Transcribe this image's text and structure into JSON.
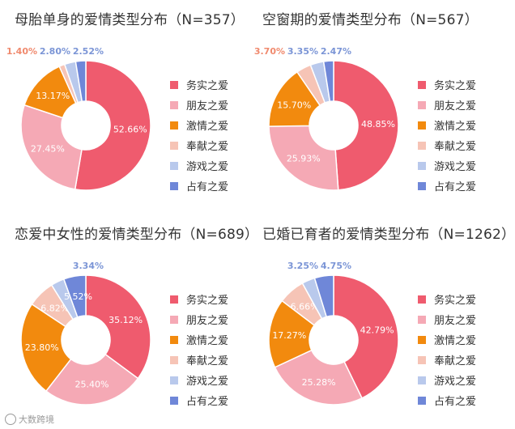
{
  "colors": {
    "务实之爱": "#EF5B6E",
    "朋友之爱": "#F5A9B5",
    "激情之爱": "#F28A0E",
    "奉献之爱": "#F6C4B6",
    "游戏之爱": "#B9C9EC",
    "占有之爱": "#6F87D8",
    "label_inside": "#ffffff",
    "label_outside": "#7B95D6",
    "label_outside_warm": "#F08A6E"
  },
  "watermark": "大数跨境",
  "chart_data": [
    {
      "type": "pie",
      "title": "母胎单身的爱情类型分布（N=357）",
      "categories": [
        "务实之爱",
        "朋友之爱",
        "激情之爱",
        "奉献之爱",
        "游戏之爱",
        "占有之爱"
      ],
      "values": [
        52.66,
        27.45,
        13.17,
        1.4,
        2.8,
        2.52
      ],
      "labels": [
        "52.66%",
        "27.45%",
        "13.17%",
        "1.40%",
        "2.80%",
        "2.52%"
      ],
      "legend": "right"
    },
    {
      "type": "pie",
      "title": "空窗期的爱情类型分布（N=567）",
      "categories": [
        "务实之爱",
        "朋友之爱",
        "激情之爱",
        "奉献之爱",
        "游戏之爱",
        "占有之爱"
      ],
      "values": [
        48.85,
        25.93,
        15.7,
        3.7,
        3.35,
        2.47
      ],
      "labels": [
        "48.85%",
        "25.93%",
        "15.70%",
        "3.70%",
        "3.35%",
        "2.47%"
      ],
      "legend": "right"
    },
    {
      "type": "pie",
      "title": "恋爱中女性的爱情类型分布（N=689）",
      "categories": [
        "务实之爱",
        "朋友之爱",
        "激情之爱",
        "奉献之爱",
        "游戏之爱",
        "占有之爱"
      ],
      "values": [
        35.12,
        25.4,
        23.8,
        6.82,
        3.34,
        5.52
      ],
      "labels": [
        "35.12%",
        "25.40%",
        "23.80%",
        "6.82%",
        "3.34%",
        "5.52%"
      ],
      "legend": "right"
    },
    {
      "type": "pie",
      "title": "已婚已育者的爱情类型分布（N=1262）",
      "categories": [
        "务实之爱",
        "朋友之爱",
        "激情之爱",
        "奉献之爱",
        "游戏之爱",
        "占有之爱"
      ],
      "values": [
        42.79,
        25.28,
        17.27,
        6.66,
        3.25,
        4.75
      ],
      "labels": [
        "42.79%",
        "25.28%",
        "17.27%",
        "6.66%",
        "3.25%",
        "4.75%"
      ],
      "legend": "right"
    }
  ]
}
